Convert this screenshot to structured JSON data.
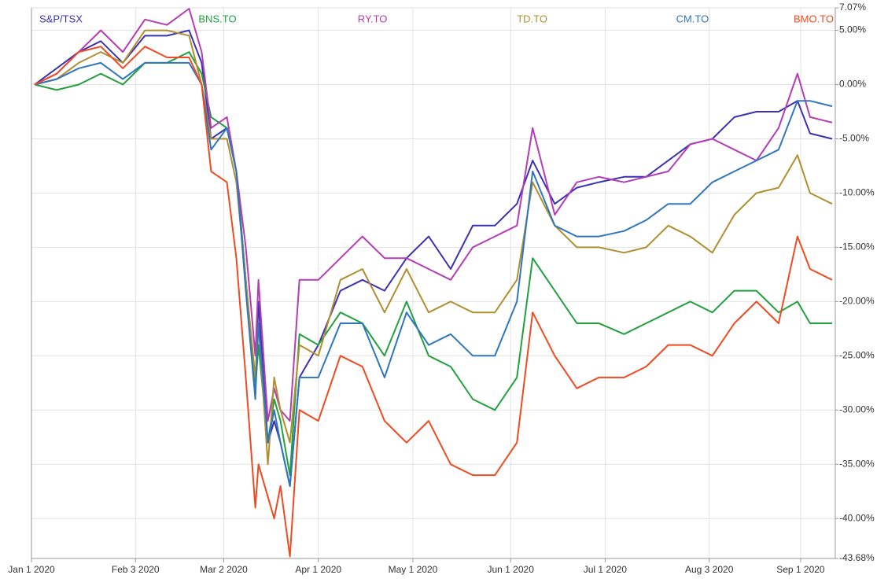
{
  "chart_data": {
    "type": "line",
    "x": [
      "2020-01-02",
      "2020-01-09",
      "2020-01-16",
      "2020-01-23",
      "2020-01-30",
      "2020-02-06",
      "2020-02-13",
      "2020-02-20",
      "2020-02-24",
      "2020-02-27",
      "2020-03-03",
      "2020-03-06",
      "2020-03-09",
      "2020-03-12",
      "2020-03-13",
      "2020-03-16",
      "2020-03-18",
      "2020-03-20",
      "2020-03-23",
      "2020-03-26",
      "2020-04-01",
      "2020-04-08",
      "2020-04-15",
      "2020-04-22",
      "2020-04-29",
      "2020-05-06",
      "2020-05-13",
      "2020-05-20",
      "2020-05-27",
      "2020-06-03",
      "2020-06-08",
      "2020-06-15",
      "2020-06-22",
      "2020-06-29",
      "2020-07-07",
      "2020-07-14",
      "2020-07-21",
      "2020-07-28",
      "2020-08-04",
      "2020-08-11",
      "2020-08-18",
      "2020-08-25",
      "2020-08-31",
      "2020-09-04",
      "2020-09-11"
    ],
    "series": [
      {
        "name": "S&P/TSX",
        "color": "#3a32b4",
        "values": [
          0,
          1.5,
          3,
          4,
          2,
          4.5,
          4.5,
          5,
          2,
          -5,
          -4,
          -8,
          -18,
          -28,
          -20,
          -33,
          -31,
          -33,
          -37,
          -27,
          -24,
          -19,
          -18,
          -19,
          -16,
          -14,
          -17,
          -13,
          -13,
          -11,
          -7,
          -11,
          -9.5,
          -9,
          -8.5,
          -8.5,
          -7,
          -5.5,
          -5,
          -3,
          -2.5,
          -2.5,
          -1.5,
          -4.5,
          -5
        ]
      },
      {
        "name": "BNS.TO",
        "color": "#22a040",
        "values": [
          0,
          -0.5,
          0,
          1,
          0,
          2,
          2,
          3,
          1,
          -3,
          -4,
          -8,
          -18,
          -28,
          -24,
          -33,
          -29,
          -31,
          -36,
          -23,
          -24,
          -21,
          -22,
          -25,
          -20,
          -25,
          -26,
          -29,
          -30,
          -27,
          -16,
          -19,
          -22,
          -22,
          -23,
          -22,
          -21,
          -20,
          -21,
          -19,
          -19,
          -21,
          -20,
          -22,
          -22
        ]
      },
      {
        "name": "RY.TO",
        "color": "#b43cb4",
        "values": [
          0,
          1,
          3,
          5,
          3,
          6,
          5.5,
          7,
          3,
          -4,
          -3,
          -8,
          -15,
          -25,
          -18,
          -31,
          -28,
          -30,
          -31,
          -18,
          -18,
          -16,
          -14,
          -16,
          -16,
          -17,
          -18,
          -15,
          -14,
          -13,
          -4,
          -12,
          -9,
          -8.5,
          -9,
          -8.5,
          -8,
          -5.5,
          -5,
          -6,
          -7,
          -4,
          1,
          -3,
          -3.5
        ]
      },
      {
        "name": "TD.TO",
        "color": "#b08f30",
        "values": [
          0,
          0.5,
          2,
          3,
          2,
          5,
          5,
          4.5,
          0,
          -5,
          -5,
          -9,
          -18,
          -27,
          -22,
          -35,
          -27,
          -30,
          -33,
          -24,
          -25,
          -18,
          -17,
          -21,
          -17,
          -21,
          -20,
          -21,
          -21,
          -18,
          -9,
          -13,
          -15,
          -15,
          -15.5,
          -15,
          -13,
          -14,
          -15.5,
          -12,
          -10,
          -9.5,
          -6.5,
          -10,
          -11
        ]
      },
      {
        "name": "CM.TO",
        "color": "#2f76c0",
        "values": [
          0,
          0.5,
          1.5,
          2,
          0.5,
          2,
          2,
          2,
          0,
          -6,
          -4,
          -8,
          -19,
          -29,
          -22,
          -33,
          -30,
          -33,
          -37,
          -27,
          -27,
          -22,
          -22,
          -27,
          -21,
          -24,
          -23,
          -25,
          -25,
          -20,
          -8,
          -13,
          -14,
          -14,
          -13.5,
          -12.5,
          -11,
          -11,
          -9,
          -8,
          -7,
          -6,
          -1.5,
          -1.5,
          -2
        ]
      },
      {
        "name": "BMO.TO",
        "color": "#f04a20",
        "values": [
          0,
          1,
          3,
          3.5,
          1.5,
          3.5,
          2.5,
          2.5,
          0,
          -8,
          -9,
          -16,
          -27,
          -39,
          -35,
          -38,
          -40,
          -37,
          -43.5,
          -30,
          -31,
          -25,
          -26,
          -31,
          -33,
          -31,
          -35,
          -36,
          -36,
          -33,
          -21,
          -25,
          -28,
          -27,
          -27,
          -26,
          -24,
          -24,
          -25,
          -22,
          -20,
          -22,
          -14,
          -17,
          -18
        ]
      }
    ],
    "xlim": [
      "2020-01-01",
      "2020-09-12"
    ],
    "xticks": [
      {
        "value": "2020-01-01",
        "label": "Jan 1 2020"
      },
      {
        "value": "2020-02-03",
        "label": "Feb 3 2020"
      },
      {
        "value": "2020-03-02",
        "label": "Mar 2 2020"
      },
      {
        "value": "2020-04-01",
        "label": "Apr 1 2020"
      },
      {
        "value": "2020-05-01",
        "label": "May 1 2020"
      },
      {
        "value": "2020-06-01",
        "label": "Jun 1 2020"
      },
      {
        "value": "2020-07-01",
        "label": "Jul 1 2020"
      },
      {
        "value": "2020-08-03",
        "label": "Aug 3 2020"
      },
      {
        "value": "2020-09-01",
        "label": "Sep 1 2020"
      }
    ],
    "ylim": [
      -43.68,
      7.07
    ],
    "yticks": [
      {
        "value": -43.68,
        "label": "-43.68%"
      },
      {
        "value": -40,
        "label": "-40.00%"
      },
      {
        "value": -35,
        "label": "-35.00%"
      },
      {
        "value": -30,
        "label": "-30.00%"
      },
      {
        "value": -25,
        "label": "-25.00%"
      },
      {
        "value": -20,
        "label": "-20.00%"
      },
      {
        "value": -15,
        "label": "-15.00%"
      },
      {
        "value": -10,
        "label": "-10.00%"
      },
      {
        "value": -5,
        "label": "-5.00%"
      },
      {
        "value": 0,
        "label": "0.00%"
      },
      {
        "value": 5,
        "label": "5.00%"
      },
      {
        "value": 7.07,
        "label": "7.07%"
      }
    ],
    "grid": true
  }
}
